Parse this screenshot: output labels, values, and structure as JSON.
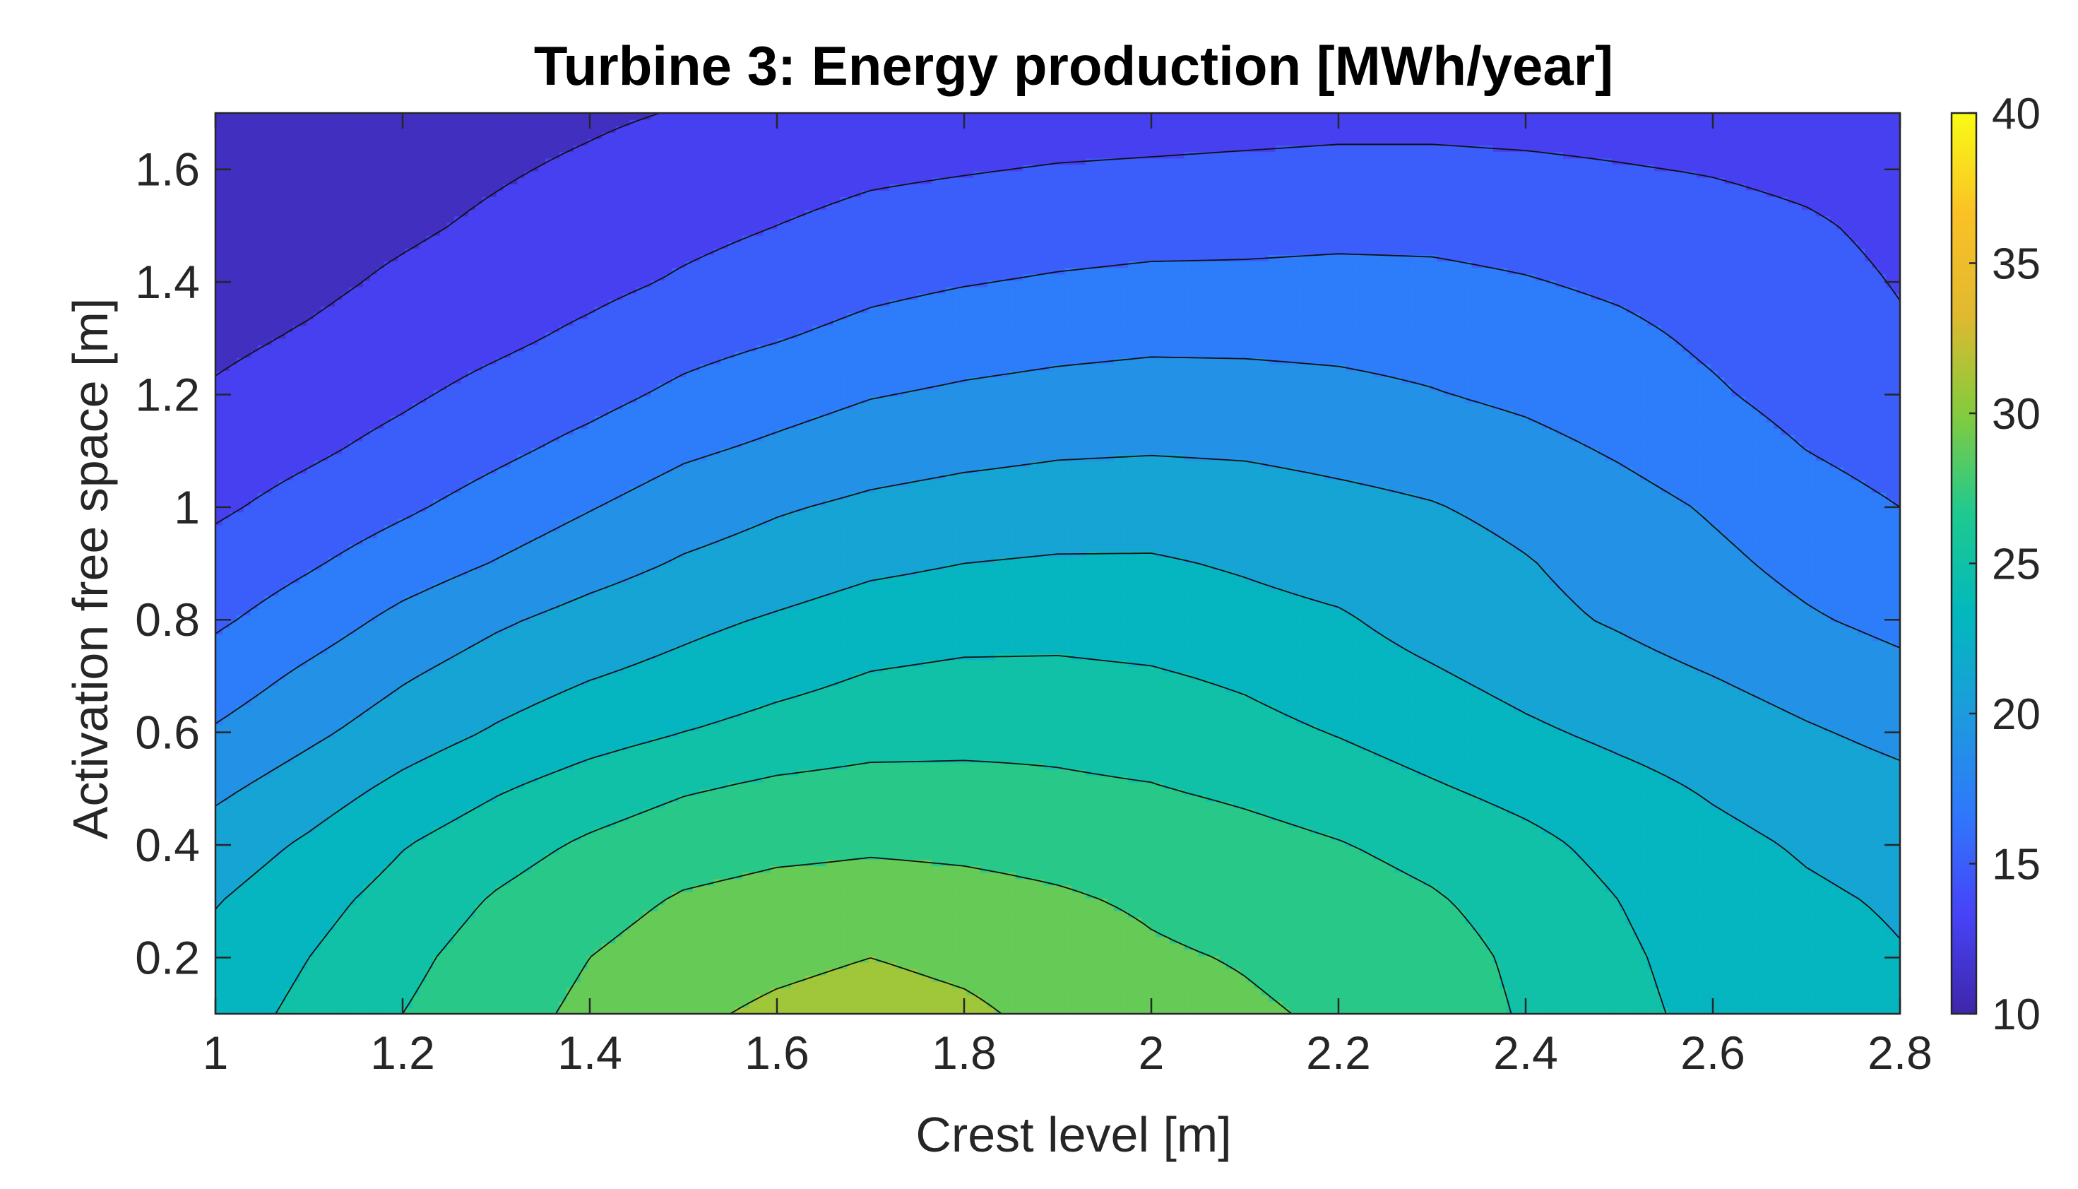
{
  "chart_data": {
    "type": "contourf",
    "title": "Turbine 3: Energy production [MWh/year]",
    "xlabel": "Crest level [m]",
    "ylabel": "Activation free space [m]",
    "xlim": [
      1,
      2.8
    ],
    "ylim": [
      0.1,
      1.7
    ],
    "xticks": [
      1,
      1.2,
      1.4,
      1.6,
      1.8,
      2,
      2.2,
      2.4,
      2.6,
      2.8
    ],
    "xtick_labels": [
      "1",
      "1.2",
      "1.4",
      "1.6",
      "1.8",
      "2",
      "2.2",
      "2.4",
      "2.6",
      "2.8"
    ],
    "yticks": [
      0.2,
      0.4,
      0.6,
      0.8,
      1,
      1.2,
      1.4,
      1.6
    ],
    "ytick_labels": [
      "0.2",
      "0.4",
      "0.6",
      "0.8",
      "1",
      "1.2",
      "1.4",
      "1.6"
    ],
    "colorbar": {
      "range": [
        10,
        40
      ],
      "ticks": [
        10,
        15,
        20,
        25,
        30,
        35,
        40
      ],
      "tick_labels": [
        "10",
        "15",
        "20",
        "25",
        "30",
        "35",
        "40"
      ],
      "colormap": "parula",
      "colormap_stops": [
        "#3e26a8",
        "#4743f8",
        "#2f78fc",
        "#1d9bdd",
        "#02b8bd",
        "#1ec990",
        "#84cb3d",
        "#e1b92f",
        "#fac126",
        "#f9fb15"
      ]
    },
    "contour_levels": [
      12,
      14,
      16,
      18,
      20,
      22,
      24,
      26,
      28,
      30
    ],
    "grid_x": [
      1,
      1.1,
      1.2,
      1.3,
      1.4,
      1.5,
      1.6,
      1.7,
      1.8,
      1.9,
      2,
      2.1,
      2.2,
      2.3,
      2.4,
      2.5,
      2.6,
      2.7,
      2.8
    ],
    "grid_y": [
      0.1,
      0.2,
      0.3,
      0.4,
      0.5,
      0.6,
      0.7,
      0.8,
      0.9,
      1,
      1.1,
      1.2,
      1.3,
      1.4,
      1.5,
      1.6,
      1.7
    ],
    "z": [
      [
        23.1,
        24.5,
        26.0,
        27.3,
        28.4,
        29.6,
        30.4,
        30.9,
        30.4,
        29.4,
        28.6,
        28.2,
        27.8,
        27.1,
        25.8,
        24.5,
        23.5,
        22.8,
        22.1
      ],
      [
        22.6,
        24.0,
        25.5,
        26.9,
        28.0,
        28.9,
        29.5,
        30.0,
        29.5,
        28.8,
        28.2,
        27.9,
        27.5,
        26.8,
        25.6,
        24.3,
        23.3,
        22.7,
        22.1
      ],
      [
        21.9,
        23.3,
        24.8,
        26.2,
        27.3,
        28.2,
        28.6,
        28.7,
        28.5,
        28.2,
        27.8,
        27.4,
        26.9,
        26.2,
        25.2,
        24.0,
        23.0,
        22.3,
        21.8
      ],
      [
        20.9,
        22.3,
        23.9,
        25.2,
        26.3,
        27.2,
        27.6,
        27.8,
        27.7,
        27.5,
        27.3,
        26.7,
        26.1,
        25.4,
        24.5,
        23.4,
        22.5,
        21.8,
        21.3
      ],
      [
        19.6,
        21.0,
        22.5,
        23.8,
        24.9,
        25.8,
        26.4,
        26.7,
        26.6,
        26.3,
        26.1,
        25.6,
        25.0,
        24.2,
        23.4,
        22.6,
        21.8,
        21.1,
        20.5
      ],
      [
        18.2,
        19.6,
        21.0,
        22.2,
        23.2,
        24.0,
        24.7,
        25.2,
        25.4,
        25.5,
        25.2,
        24.6,
        23.9,
        23.1,
        22.3,
        21.6,
        21.0,
        20.2,
        19.5
      ],
      [
        16.9,
        18.4,
        19.8,
        21.0,
        21.9,
        22.6,
        23.4,
        24.1,
        24.4,
        24.4,
        24.2,
        23.7,
        22.9,
        22.2,
        21.4,
        20.7,
        20.0,
        19.2,
        18.5
      ],
      [
        15.7,
        17.0,
        18.5,
        19.7,
        20.7,
        21.5,
        22.2,
        22.9,
        23.2,
        23.3,
        23.1,
        22.6,
        22.2,
        21.3,
        20.5,
        19.8,
        19.0,
        18.2,
        17.5
      ],
      [
        14.7,
        15.8,
        17.0,
        18.1,
        19.2,
        20.2,
        20.9,
        21.6,
        22.0,
        22.2,
        22.2,
        21.8,
        21.3,
        20.8,
        20.1,
        19.3,
        18.4,
        17.5,
        16.7
      ],
      [
        13.7,
        14.7,
        15.7,
        16.8,
        17.9,
        19.0,
        19.8,
        20.4,
        20.8,
        21.0,
        21.1,
        20.9,
        20.5,
        20.1,
        19.5,
        18.7,
        17.8,
        16.9,
        16.0
      ],
      [
        12.9,
        13.7,
        14.6,
        15.6,
        16.6,
        17.7,
        18.4,
        19.1,
        19.5,
        19.8,
        19.9,
        19.8,
        19.5,
        19.2,
        18.6,
        17.8,
        16.9,
        16.0,
        15.2
      ],
      [
        12.2,
        12.9,
        13.7,
        14.6,
        15.4,
        16.4,
        17.2,
        17.9,
        18.3,
        18.6,
        18.8,
        18.7,
        18.5,
        18.1,
        17.6,
        16.9,
        16.2,
        15.4,
        14.6
      ],
      [
        11.6,
        12.2,
        12.9,
        13.6,
        14.4,
        15.3,
        15.9,
        16.6,
        17.1,
        17.4,
        17.6,
        17.6,
        17.5,
        17.3,
        16.9,
        16.4,
        15.7,
        15.0,
        14.2
      ],
      [
        11.1,
        11.6,
        12.3,
        12.9,
        13.5,
        14.2,
        14.8,
        15.5,
        15.9,
        16.2,
        16.4,
        16.4,
        16.5,
        16.4,
        16.1,
        15.7,
        15.2,
        14.6,
        13.9
      ],
      [
        10.7,
        11.2,
        11.7,
        12.3,
        12.9,
        13.5,
        14.0,
        14.5,
        14.8,
        15.1,
        15.3,
        15.4,
        15.5,
        15.5,
        15.3,
        15.0,
        14.6,
        14.2,
        13.6
      ],
      [
        10.4,
        10.9,
        11.3,
        11.8,
        12.3,
        12.9,
        13.3,
        13.7,
        13.9,
        14.1,
        14.2,
        14.3,
        14.4,
        14.4,
        14.3,
        14.1,
        13.9,
        13.6,
        13.2
      ],
      [
        10.2,
        10.6,
        10.9,
        11.3,
        11.7,
        12.1,
        12.4,
        12.7,
        13.0,
        13.2,
        13.3,
        13.4,
        13.5,
        13.5,
        13.4,
        13.3,
        13.1,
        12.9,
        12.7
      ]
    ]
  }
}
